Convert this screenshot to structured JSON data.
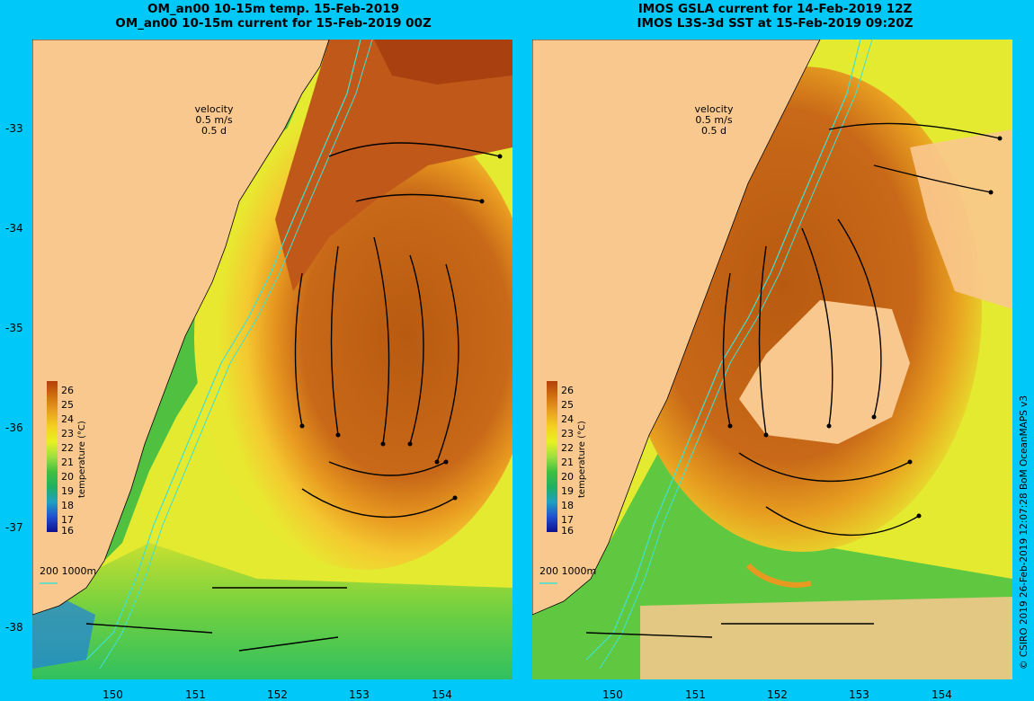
{
  "left_panel": {
    "title_line1": "OM_an00 10-15m temp. 15-Feb-2019",
    "title_line2": "OM_an00 10-15m current for 15-Feb-2019 00Z",
    "velocity_label": "velocity",
    "velocity_speed": "0.5 m/s",
    "velocity_time": "0.5 d",
    "isobath_label": "200  1000m"
  },
  "right_panel": {
    "title_line1": "IMOS GSLA current for 14-Feb-2019 12Z",
    "title_line2": "IMOS L3S-3d SST at 15-Feb-2019 09:20Z",
    "velocity_label": "velocity",
    "velocity_speed": "0.5 m/s",
    "velocity_time": "0.5 d",
    "isobath_label": "200  1000m"
  },
  "y_ticks": [
    "-33",
    "-34",
    "-35",
    "-36",
    "-37",
    "-38"
  ],
  "x_ticks": [
    "150",
    "151",
    "152",
    "153",
    "154"
  ],
  "colorbar": {
    "title": "temperature (°C)",
    "labels": [
      "26",
      "25",
      "24",
      "23",
      "22",
      "21",
      "20",
      "19",
      "18",
      "17",
      "16"
    ],
    "colors": [
      "#b4400a",
      "#d07010",
      "#e8a020",
      "#f4d020",
      "#e8f020",
      "#a0e040",
      "#40c040",
      "#20b060",
      "#20a0c0",
      "#2050d0",
      "#101090"
    ]
  },
  "credit": "© CSIRO 2019   26-Feb-2019 12:07:28 BoM OceanMAPS v3",
  "colors": {
    "background": "#00c8f8",
    "land": "#f9c88e",
    "isobath": "#40e0d0"
  }
}
